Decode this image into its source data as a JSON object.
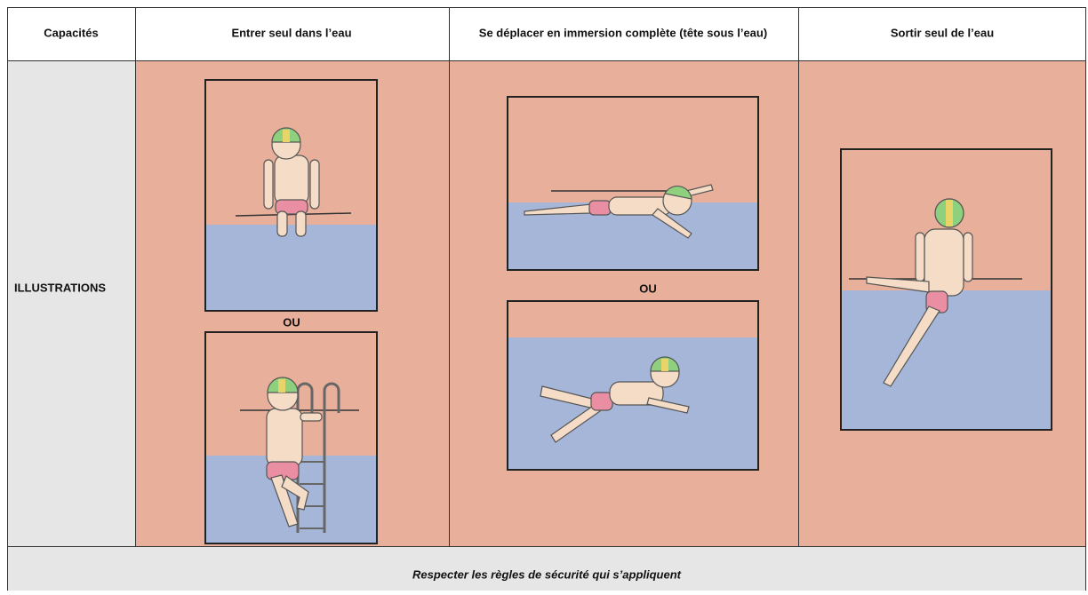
{
  "table": {
    "header": [
      "Capacités",
      "Entrer seul dans l’eau",
      "Se déplacer en immersion complète (tête sous l’eau)",
      "Sortir seul de l’eau"
    ],
    "row_label": "ILLUSTRATIONS",
    "separators": [
      "OU",
      "OU"
    ],
    "footer": "Respecter les règles de sécurité qui s’appliquent"
  }
}
